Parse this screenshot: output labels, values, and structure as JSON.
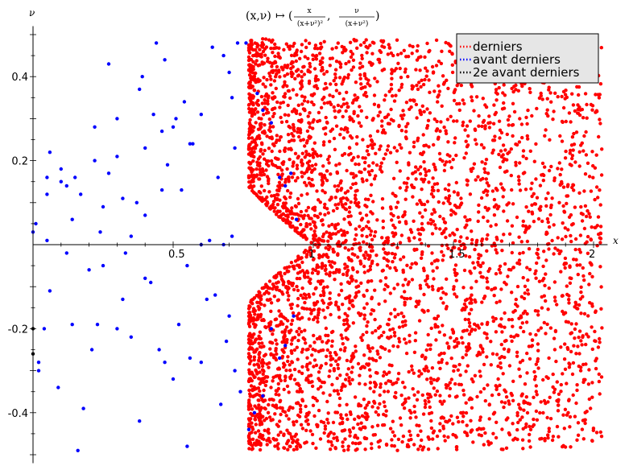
{
  "chart_data": {
    "type": "scatter",
    "title_parts": {
      "lhs": "(x,ν)",
      "maps_to": "↦",
      "open": "(",
      "num1": "x",
      "den1": "(x+ν²)²",
      "sep": ",",
      "num2": "ν",
      "den2": "(x+ν²)",
      "close": ")"
    },
    "xlabel": "x",
    "ylabel": "ν",
    "xlim": [
      0,
      2.05
    ],
    "ylim": [
      -0.52,
      0.52
    ],
    "x_ticks": [
      0.5,
      1,
      1.5,
      2
    ],
    "x_tick_labels": [
      "0.5",
      "1",
      "1.5",
      "2"
    ],
    "y_ticks": [
      -0.4,
      -0.2,
      0.2,
      0.4
    ],
    "y_tick_labels": [
      "-0.4",
      "-0.2",
      "0.2",
      "0.4"
    ],
    "grid": false,
    "legend_position": "top-right",
    "series": [
      {
        "name": "derniers",
        "color": "#ff0000",
        "region": "points with x between 1/(1+v)^2 (v>0) or 1/(1-v)^2 (v<0) boundary and 2.03, |v| up to 0.5, dense near the boundary",
        "boundary_points": [
          [
            0.78,
            0.5
          ],
          [
            0.85,
            0.4
          ],
          [
            0.92,
            0.3
          ],
          [
            0.97,
            0.2
          ],
          [
            1.0,
            0.1
          ],
          [
            1.0,
            0.0
          ],
          [
            0.98,
            -0.1
          ],
          [
            0.93,
            -0.2
          ],
          [
            0.88,
            -0.3
          ],
          [
            0.83,
            -0.4
          ],
          [
            0.77,
            -0.5
          ]
        ]
      },
      {
        "name": "avant derniers",
        "color": "#0000ff",
        "points": [
          [
            0.0,
            0.03
          ],
          [
            0.01,
            0.05
          ],
          [
            0.05,
            0.01
          ],
          [
            0.05,
            0.16
          ],
          [
            0.06,
            0.22
          ],
          [
            0.05,
            0.12
          ],
          [
            0.1,
            0.15
          ],
          [
            0.1,
            0.18
          ],
          [
            0.12,
            0.14
          ],
          [
            0.14,
            0.06
          ],
          [
            0.15,
            0.16
          ],
          [
            0.17,
            0.12
          ],
          [
            0.22,
            0.28
          ],
          [
            0.22,
            0.2
          ],
          [
            0.24,
            0.03
          ],
          [
            0.25,
            0.09
          ],
          [
            0.27,
            0.43
          ],
          [
            0.27,
            0.17
          ],
          [
            0.3,
            0.3
          ],
          [
            0.3,
            0.21
          ],
          [
            0.32,
            0.11
          ],
          [
            0.35,
            0.02
          ],
          [
            0.37,
            0.1
          ],
          [
            0.38,
            0.37
          ],
          [
            0.39,
            0.4
          ],
          [
            0.4,
            0.23
          ],
          [
            0.4,
            0.07
          ],
          [
            0.43,
            0.31
          ],
          [
            0.44,
            0.48
          ],
          [
            0.46,
            0.13
          ],
          [
            0.46,
            0.27
          ],
          [
            0.47,
            0.44
          ],
          [
            0.48,
            0.19
          ],
          [
            0.5,
            0.28
          ],
          [
            0.51,
            0.3
          ],
          [
            0.53,
            0.13
          ],
          [
            0.54,
            0.34
          ],
          [
            0.56,
            0.24
          ],
          [
            0.57,
            0.24
          ],
          [
            0.6,
            0.31
          ],
          [
            0.64,
            0.47
          ],
          [
            0.66,
            0.16
          ],
          [
            0.68,
            0.45
          ],
          [
            0.7,
            0.41
          ],
          [
            0.71,
            0.35
          ],
          [
            0.72,
            0.23
          ],
          [
            0.73,
            0.48
          ],
          [
            0.76,
            0.48
          ],
          [
            0.8,
            0.36
          ],
          [
            0.82,
            0.32
          ],
          [
            0.85,
            0.29
          ],
          [
            0.88,
            0.16
          ],
          [
            0.9,
            0.14
          ],
          [
            0.92,
            0.17
          ],
          [
            0.94,
            0.06
          ],
          [
            0.63,
            0.01
          ],
          [
            0.6,
            0.0
          ],
          [
            0.71,
            0.02
          ],
          [
            0.68,
            0.0
          ],
          [
            0.06,
            -0.11
          ],
          [
            0.04,
            -0.2
          ],
          [
            0.09,
            -0.34
          ],
          [
            0.14,
            -0.19
          ],
          [
            0.18,
            -0.39
          ],
          [
            0.21,
            -0.25
          ],
          [
            0.23,
            -0.19
          ],
          [
            0.16,
            -0.49
          ],
          [
            0.3,
            -0.2
          ],
          [
            0.32,
            -0.13
          ],
          [
            0.35,
            -0.22
          ],
          [
            0.38,
            -0.42
          ],
          [
            0.42,
            -0.09
          ],
          [
            0.45,
            -0.25
          ],
          [
            0.47,
            -0.28
          ],
          [
            0.5,
            -0.32
          ],
          [
            0.52,
            -0.19
          ],
          [
            0.55,
            -0.48
          ],
          [
            0.56,
            -0.27
          ],
          [
            0.6,
            -0.28
          ],
          [
            0.62,
            -0.13
          ],
          [
            0.65,
            -0.12
          ],
          [
            0.67,
            -0.38
          ],
          [
            0.69,
            -0.23
          ],
          [
            0.72,
            -0.3
          ],
          [
            0.74,
            -0.35
          ],
          [
            0.77,
            -0.44
          ],
          [
            0.79,
            -0.4
          ],
          [
            0.82,
            -0.36
          ],
          [
            0.85,
            -0.2
          ],
          [
            0.88,
            -0.27
          ],
          [
            0.9,
            -0.24
          ],
          [
            0.93,
            -0.17
          ],
          [
            0.25,
            -0.05
          ],
          [
            0.4,
            -0.08
          ],
          [
            0.12,
            -0.02
          ],
          [
            0.2,
            -0.06
          ],
          [
            0.55,
            -0.05
          ],
          [
            0.33,
            -0.02
          ],
          [
            0.7,
            -0.17
          ],
          [
            0.02,
            -0.28
          ],
          [
            0.02,
            -0.3
          ]
        ]
      },
      {
        "name": "2e avant derniers",
        "color": "#000000",
        "points": [
          [
            0.0,
            -0.2
          ],
          [
            0.0,
            -0.26
          ]
        ]
      }
    ]
  }
}
